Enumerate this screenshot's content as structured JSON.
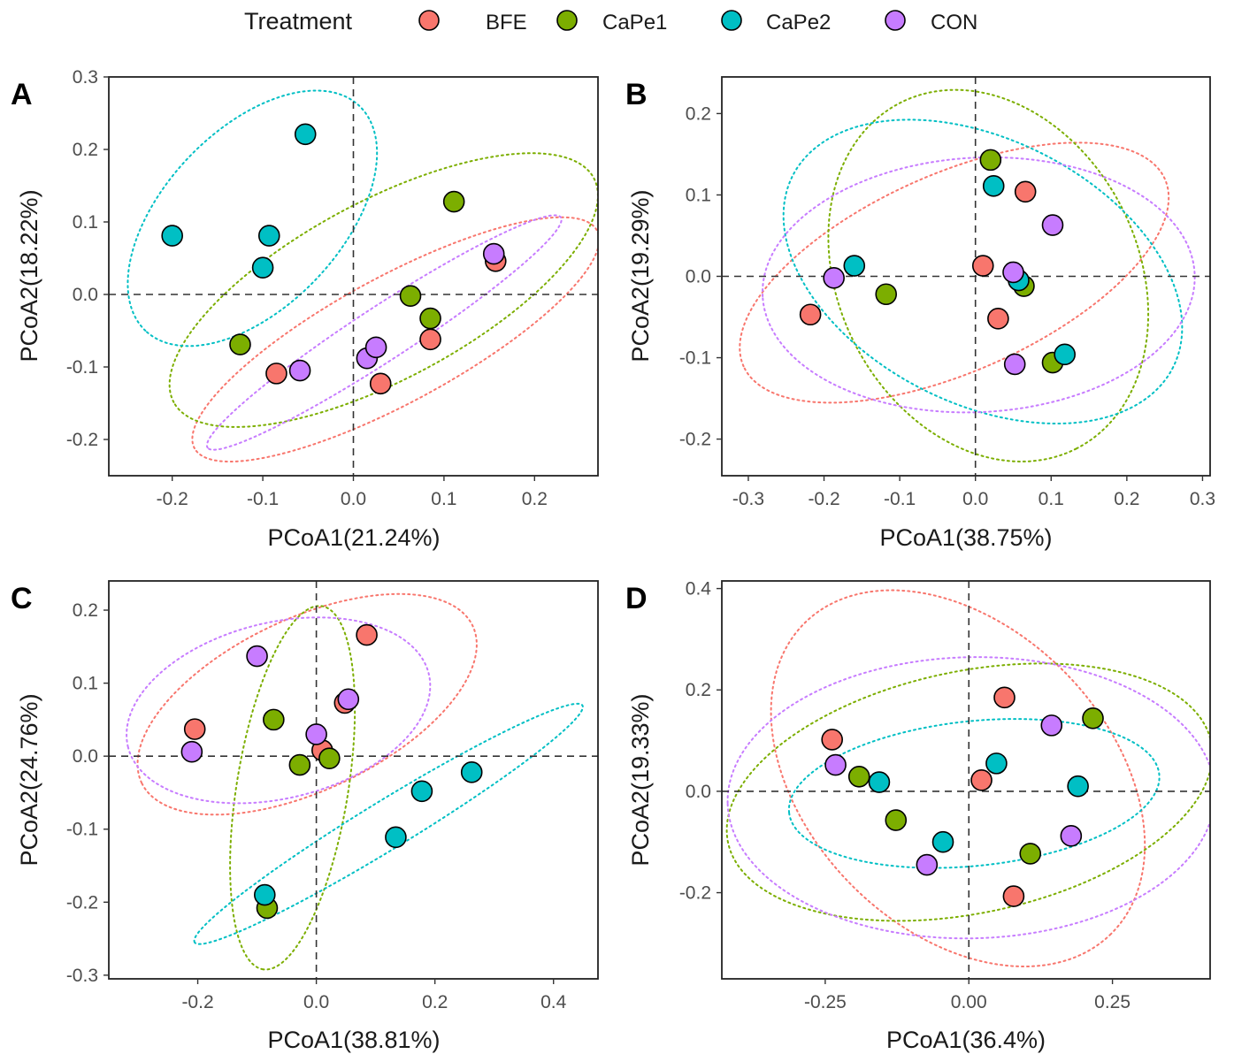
{
  "legend": {
    "title": "Treatment",
    "items": [
      {
        "name": "BFE",
        "color": "#F8766D"
      },
      {
        "name": "CaPe1",
        "color": "#7CAE00"
      },
      {
        "name": "CaPe2",
        "color": "#00BFC4"
      },
      {
        "name": "CON",
        "color": "#C77CFF"
      }
    ]
  },
  "chart_data": [
    {
      "type": "scatter",
      "panel_label": "A",
      "xlabel": "PCoA1(21.24%)",
      "ylabel": "PCoA2(18.22%)",
      "xlim": [
        -0.27,
        0.27
      ],
      "ylim": [
        -0.25,
        0.3
      ],
      "xticks": [
        -0.2,
        -0.1,
        0.0,
        0.1,
        0.2
      ],
      "xtick_labels": [
        "-0.2",
        "-0.1",
        "0.0",
        "0.1",
        "0.2"
      ],
      "yticks": [
        -0.2,
        -0.1,
        0.0,
        0.1,
        0.2,
        0.3
      ],
      "ytick_labels": [
        "-0.2",
        "-0.1",
        "0.0",
        "0.1",
        "0.2",
        "0.3"
      ],
      "reference_lines": {
        "x": 0,
        "y": 0
      },
      "ellipses": true,
      "series": [
        {
          "name": "BFE",
          "points": [
            [
              -0.085,
              -0.109
            ],
            [
              0.03,
              -0.123
            ],
            [
              0.085,
              -0.062
            ],
            [
              0.157,
              0.046
            ]
          ]
        },
        {
          "name": "CaPe1",
          "points": [
            [
              -0.125,
              -0.069
            ],
            [
              0.063,
              -0.002
            ],
            [
              0.085,
              -0.033
            ],
            [
              0.111,
              0.128
            ]
          ]
        },
        {
          "name": "CaPe2",
          "points": [
            [
              -0.2,
              0.081
            ],
            [
              -0.053,
              0.221
            ],
            [
              -0.093,
              0.081
            ],
            [
              -0.1,
              0.037
            ]
          ]
        },
        {
          "name": "CON",
          "points": [
            [
              -0.059,
              -0.105
            ],
            [
              0.015,
              -0.088
            ],
            [
              0.025,
              -0.073
            ],
            [
              0.155,
              0.056
            ]
          ]
        }
      ]
    },
    {
      "type": "scatter",
      "panel_label": "B",
      "xlabel": "PCoA1(38.75%)",
      "ylabel": "PCoA2(19.29%)",
      "xlim": [
        -0.335,
        0.31
      ],
      "ylim": [
        -0.245,
        0.245
      ],
      "xticks": [
        -0.3,
        -0.2,
        -0.1,
        0.0,
        0.1,
        0.2,
        0.3
      ],
      "xtick_labels": [
        "-0.3",
        "-0.2",
        "-0.1",
        "0.0",
        "0.1",
        "0.2",
        "0.3"
      ],
      "yticks": [
        -0.2,
        -0.1,
        0.0,
        0.1,
        0.2
      ],
      "ytick_labels": [
        "-0.2",
        "-0.1",
        "0.0",
        "0.1",
        "0.2"
      ],
      "reference_lines": {
        "x": 0,
        "y": 0
      },
      "ellipses": true,
      "series": [
        {
          "name": "BFE",
          "points": [
            [
              -0.218,
              -0.047
            ],
            [
              0.01,
              0.013
            ],
            [
              0.03,
              -0.052
            ],
            [
              0.066,
              0.104
            ]
          ]
        },
        {
          "name": "CaPe1",
          "points": [
            [
              -0.118,
              -0.022
            ],
            [
              0.02,
              0.143
            ],
            [
              0.064,
              -0.012
            ],
            [
              0.102,
              -0.106
            ]
          ]
        },
        {
          "name": "CaPe2",
          "points": [
            [
              -0.16,
              0.013
            ],
            [
              0.024,
              0.111
            ],
            [
              0.057,
              -0.005
            ],
            [
              0.118,
              -0.096
            ]
          ]
        },
        {
          "name": "CON",
          "points": [
            [
              -0.187,
              -0.002
            ],
            [
              0.05,
              0.005
            ],
            [
              0.052,
              -0.108
            ],
            [
              0.102,
              0.063
            ]
          ]
        }
      ]
    },
    {
      "type": "scatter",
      "panel_label": "C",
      "xlabel": "PCoA1(38.81%)",
      "ylabel": "PCoA2(24.76%)",
      "xlim": [
        -0.35,
        0.475
      ],
      "ylim": [
        -0.305,
        0.24
      ],
      "xticks": [
        -0.2,
        0.0,
        0.2,
        0.4
      ],
      "xtick_labels": [
        "-0.2",
        "0.0",
        "0.2",
        "0.4"
      ],
      "yticks": [
        -0.3,
        -0.2,
        -0.1,
        0.0,
        0.1,
        0.2
      ],
      "ytick_labels": [
        "-0.3",
        "-0.2",
        "-0.1",
        "0.0",
        "0.1",
        "0.2"
      ],
      "reference_lines": {
        "x": 0,
        "y": 0
      },
      "ellipses": true,
      "series": [
        {
          "name": "BFE",
          "points": [
            [
              -0.205,
              0.037
            ],
            [
              0.01,
              0.008
            ],
            [
              0.048,
              0.073
            ],
            [
              0.085,
              0.166
            ]
          ]
        },
        {
          "name": "CaPe1",
          "points": [
            [
              -0.072,
              0.05
            ],
            [
              -0.028,
              -0.012
            ],
            [
              0.022,
              -0.003
            ],
            [
              -0.083,
              -0.208
            ]
          ]
        },
        {
          "name": "CaPe2",
          "points": [
            [
              -0.087,
              -0.19
            ],
            [
              0.134,
              -0.111
            ],
            [
              0.178,
              -0.048
            ],
            [
              0.262,
              -0.022
            ]
          ]
        },
        {
          "name": "CON",
          "points": [
            [
              -0.21,
              0.006
            ],
            [
              -0.1,
              0.137
            ],
            [
              0.0,
              0.03
            ],
            [
              0.054,
              0.078
            ]
          ]
        }
      ]
    },
    {
      "type": "scatter",
      "panel_label": "D",
      "xlabel": "PCoA1(36.4%)",
      "ylabel": "PCoA2(19.33%)",
      "xlim": [
        -0.43,
        0.42
      ],
      "ylim": [
        -0.37,
        0.415
      ],
      "xticks": [
        -0.25,
        0.0,
        0.25
      ],
      "xtick_labels": [
        "-0.25",
        "0.00",
        "0.25"
      ],
      "yticks": [
        -0.2,
        0.0,
        0.2,
        0.4
      ],
      "ytick_labels": [
        "-0.2",
        "0.0",
        "0.2",
        "0.4"
      ],
      "reference_lines": {
        "x": 0,
        "y": 0
      },
      "ellipses": true,
      "series": [
        {
          "name": "BFE",
          "points": [
            [
              -0.238,
              0.102
            ],
            [
              0.022,
              0.022
            ],
            [
              0.062,
              0.185
            ],
            [
              0.078,
              -0.207
            ]
          ]
        },
        {
          "name": "CaPe1",
          "points": [
            [
              -0.191,
              0.029
            ],
            [
              -0.127,
              -0.057
            ],
            [
              0.107,
              -0.123
            ],
            [
              0.216,
              0.144
            ]
          ]
        },
        {
          "name": "CaPe2",
          "points": [
            [
              -0.156,
              0.018
            ],
            [
              -0.045,
              -0.1
            ],
            [
              0.048,
              0.055
            ],
            [
              0.19,
              0.01
            ]
          ]
        },
        {
          "name": "CON",
          "points": [
            [
              -0.232,
              0.052
            ],
            [
              -0.073,
              -0.145
            ],
            [
              0.144,
              0.13
            ],
            [
              0.178,
              -0.088
            ]
          ]
        }
      ]
    }
  ]
}
